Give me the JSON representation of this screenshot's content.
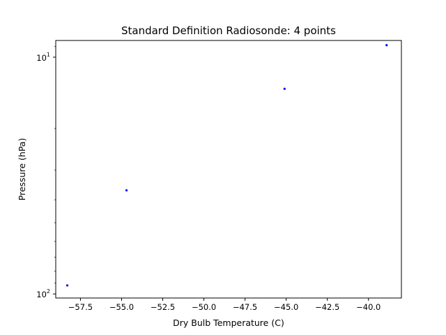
{
  "chart_data": {
    "type": "scatter",
    "title": "Standard Definition Radiosonde: 4 points",
    "xlabel": "Dry Bulb Temperature (C)",
    "ylabel": "Pressure (hPa)",
    "xlim": [
      -59.0,
      -38.0
    ],
    "ylim": [
      104,
      8.5
    ],
    "y_scale": "log",
    "y_inverted": true,
    "x_ticks": [
      -57.5,
      -55.0,
      -52.5,
      -50.0,
      -47.5,
      -45.0,
      -42.5,
      -40.0
    ],
    "x_tick_labels": [
      "−57.5",
      "−55.0",
      "−52.5",
      "−50.0",
      "−47.5",
      "−45.0",
      "−42.5",
      "−40.0"
    ],
    "y_ticks": [
      {
        "value": 10,
        "base": "10",
        "exp": "1"
      },
      {
        "value": 100,
        "base": "10",
        "exp": "2"
      }
    ],
    "grid": false,
    "marker_color": "#0000ff",
    "points": [
      {
        "x": -58.3,
        "y": 92
      },
      {
        "x": -54.7,
        "y": 36.5
      },
      {
        "x": -45.1,
        "y": 13.6
      },
      {
        "x": -38.9,
        "y": 8.9
      }
    ]
  }
}
